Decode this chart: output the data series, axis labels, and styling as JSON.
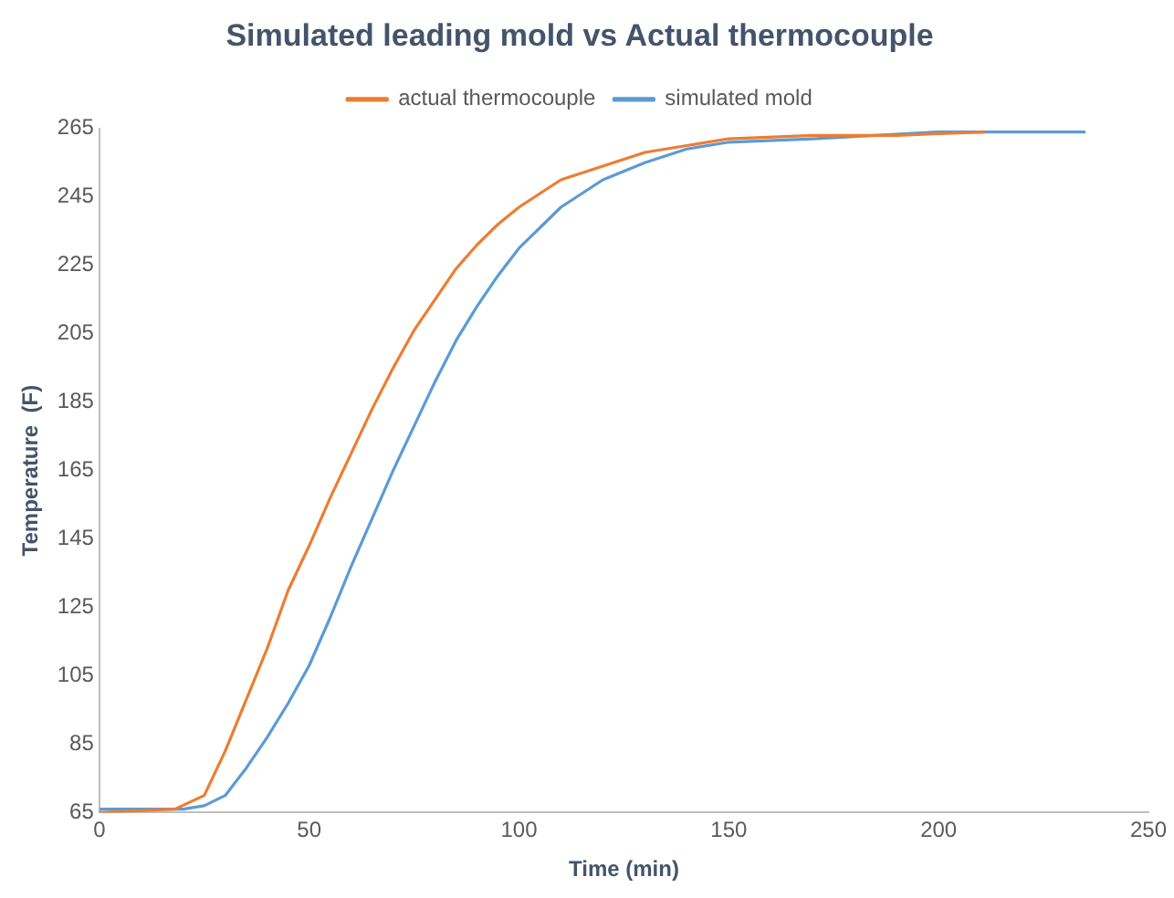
{
  "chart_data": {
    "type": "line",
    "title": "Simulated leading mold vs Actual thermocouple",
    "xlabel": "Time (min)",
    "ylabel": "Temperature  (F)",
    "xlim": [
      0,
      250
    ],
    "xticks": [
      0,
      50,
      100,
      150,
      200,
      250
    ],
    "ylim": [
      65,
      265
    ],
    "yticks": [
      65,
      85,
      105,
      125,
      145,
      165,
      185,
      205,
      225,
      245,
      265
    ],
    "grid": false,
    "legend": "top",
    "marker": "none",
    "line_style": "solid",
    "series": [
      {
        "name": "actual thermocouple",
        "color": "#ed7d31",
        "x": [
          0,
          18,
          25,
          30,
          35,
          40,
          45,
          50,
          55,
          60,
          65,
          70,
          75,
          80,
          85,
          90,
          95,
          100,
          105,
          110,
          120,
          130,
          140,
          150,
          170,
          190,
          211
        ],
        "values": [
          65,
          66,
          70,
          83,
          98,
          113,
          130,
          143,
          157,
          170,
          183,
          195,
          206,
          215,
          224,
          231,
          237,
          242,
          246,
          250,
          254,
          258,
          260,
          262,
          263,
          263,
          264
        ]
      },
      {
        "name": "simulated mold",
        "color": "#5b9bd5",
        "x": [
          0,
          20,
          25,
          30,
          35,
          40,
          45,
          50,
          55,
          60,
          65,
          70,
          75,
          80,
          85,
          90,
          95,
          100,
          105,
          110,
          115,
          120,
          130,
          140,
          150,
          170,
          200,
          235
        ],
        "values": [
          66,
          66,
          67,
          70,
          78,
          87,
          97,
          108,
          122,
          137,
          151,
          165,
          178,
          191,
          203,
          213,
          222,
          230,
          236,
          242,
          246,
          250,
          255,
          259,
          261,
          262,
          264,
          264
        ]
      }
    ]
  }
}
